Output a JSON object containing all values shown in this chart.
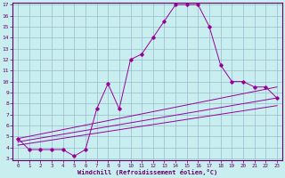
{
  "xlabel": "Windchill (Refroidissement éolien,°C)",
  "bg_color": "#c8eef0",
  "line_color": "#990099",
  "axis_color": "#660066",
  "grid_color": "#99bbcc",
  "xlim": [
    -0.5,
    23.5
  ],
  "ylim": [
    2.8,
    17.2
  ],
  "xticks": [
    0,
    1,
    2,
    3,
    4,
    5,
    6,
    7,
    8,
    9,
    10,
    11,
    12,
    13,
    14,
    15,
    16,
    17,
    18,
    19,
    20,
    21,
    22,
    23
  ],
  "yticks": [
    3,
    4,
    5,
    6,
    7,
    8,
    9,
    10,
    11,
    12,
    13,
    14,
    15,
    16,
    17
  ],
  "series": [
    [
      0,
      4.8
    ],
    [
      1,
      3.8
    ],
    [
      2,
      3.8
    ],
    [
      3,
      3.8
    ],
    [
      4,
      3.8
    ],
    [
      5,
      3.2
    ],
    [
      6,
      3.8
    ],
    [
      7,
      7.5
    ],
    [
      8,
      9.8
    ],
    [
      9,
      7.5
    ],
    [
      10,
      12.0
    ],
    [
      11,
      12.5
    ],
    [
      12,
      14.0
    ],
    [
      13,
      15.5
    ],
    [
      14,
      17.0
    ],
    [
      15,
      17.0
    ],
    [
      16,
      17.0
    ],
    [
      17,
      15.0
    ],
    [
      18,
      11.5
    ],
    [
      19,
      10.0
    ],
    [
      20,
      10.0
    ],
    [
      21,
      9.5
    ],
    [
      22,
      9.5
    ],
    [
      23,
      8.5
    ]
  ],
  "linear1": [
    [
      0,
      4.8
    ],
    [
      23,
      9.5
    ]
  ],
  "linear2": [
    [
      0,
      4.5
    ],
    [
      23,
      8.5
    ]
  ],
  "linear3": [
    [
      0,
      4.2
    ],
    [
      23,
      7.8
    ]
  ]
}
